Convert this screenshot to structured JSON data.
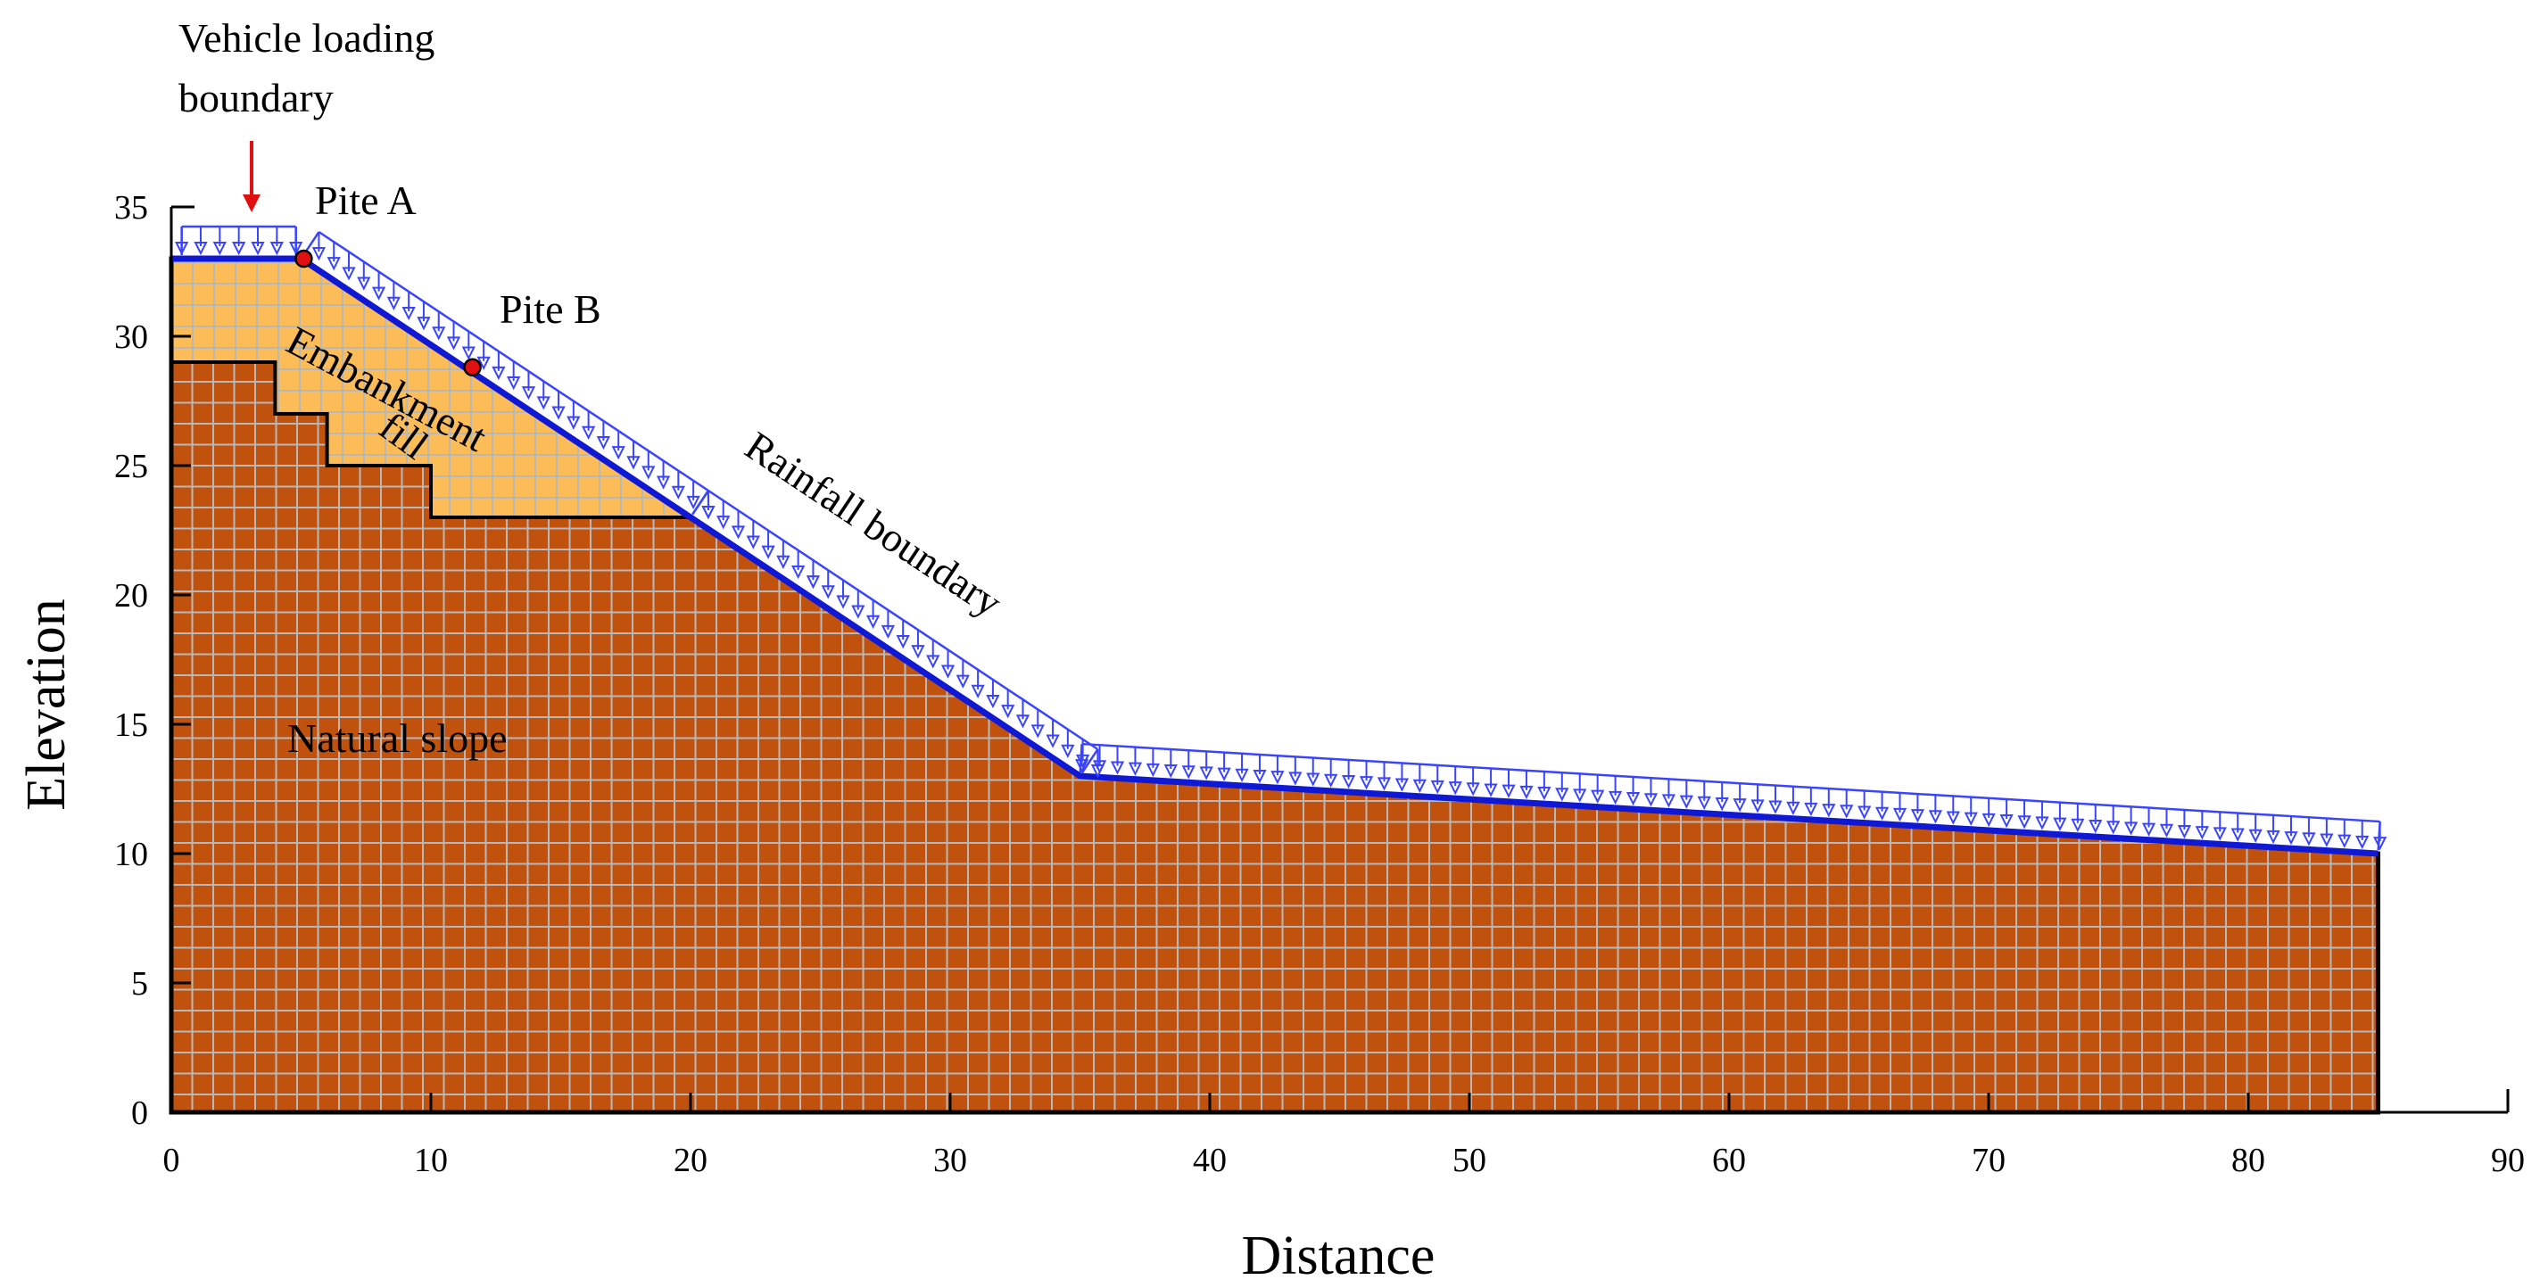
{
  "axes": {
    "xlabel": "Distance",
    "ylabel": "Elevation",
    "xlim": [
      0,
      90
    ],
    "ylim": [
      0,
      35
    ],
    "x_ticks": [
      "0",
      "10",
      "20",
      "30",
      "40",
      "50",
      "60",
      "70",
      "80",
      "90"
    ],
    "y_ticks": [
      "0",
      "5",
      "10",
      "15",
      "20",
      "25",
      "30",
      "35"
    ],
    "x_tick_values": [
      0,
      10,
      20,
      30,
      40,
      50,
      60,
      70,
      80,
      90
    ],
    "y_tick_values": [
      0,
      5,
      10,
      15,
      20,
      25,
      30,
      35
    ]
  },
  "geometry": {
    "ground_surface": [
      [
        0,
        33
      ],
      [
        5,
        33
      ],
      [
        20,
        23
      ],
      [
        35,
        13
      ],
      [
        85,
        10
      ],
      [
        85,
        0
      ],
      [
        0,
        0
      ]
    ],
    "embankment_fill": [
      [
        0,
        33
      ],
      [
        5,
        33
      ],
      [
        20,
        23
      ],
      [
        10,
        23
      ],
      [
        10,
        25
      ],
      [
        6,
        25
      ],
      [
        6,
        27
      ],
      [
        4,
        27
      ],
      [
        4,
        29
      ],
      [
        0,
        29
      ]
    ],
    "rainfall_boundary": [
      [
        5,
        33
      ],
      [
        20,
        23
      ],
      [
        35,
        13
      ],
      [
        85,
        10
      ]
    ],
    "vehicle_load_extent": [
      0,
      5
    ]
  },
  "points": [
    {
      "label": "Pite A",
      "x": 5.1,
      "y": 33
    },
    {
      "label": "Pite B",
      "x": 11.6,
      "y": 28.8
    }
  ],
  "annotations": {
    "vehicle_loading": "Vehicle loading",
    "boundary": "boundary",
    "embankment": "Embankment",
    "fill": "fill",
    "rainfall_boundary": "Rainfall boundary",
    "natural_slope": "Natural slope"
  },
  "colors": {
    "embankment_fill": "#fcbd59",
    "natural_slope": "#c1520e",
    "mesh": "#b8b8b8",
    "outline": "#000000",
    "boundary_line": "#0f18d2",
    "load_arrows": "#3a44ff",
    "marker": "#e01010",
    "pointer_arrow": "#e01010"
  }
}
